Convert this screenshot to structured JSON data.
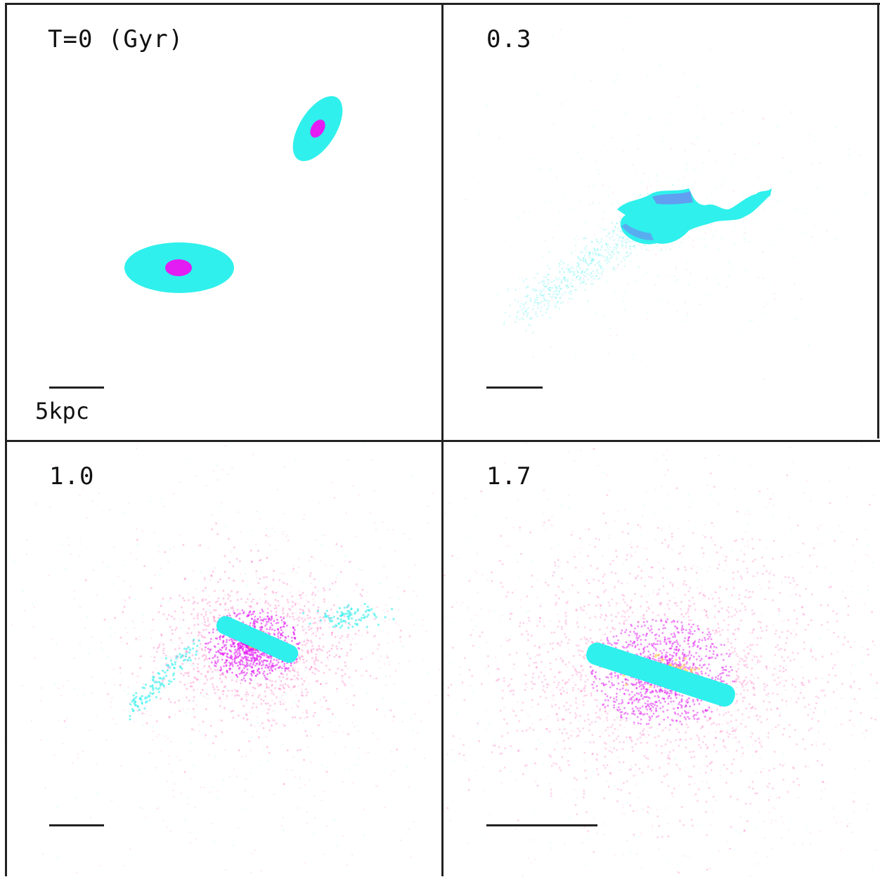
{
  "panels": [
    {
      "label": "T=0 (Gyr)",
      "scale_label": "5kpc"
    },
    {
      "label": "0.3"
    },
    {
      "label": "1.0"
    },
    {
      "label": "1.7"
    }
  ],
  "colors": {
    "cyan": "#2ff0ec",
    "magenta": "#e21cf2",
    "pink": "#ff4fb0",
    "violet": "#8b5cf6",
    "yellow": "#ffcf4a",
    "frame": "#222222"
  }
}
